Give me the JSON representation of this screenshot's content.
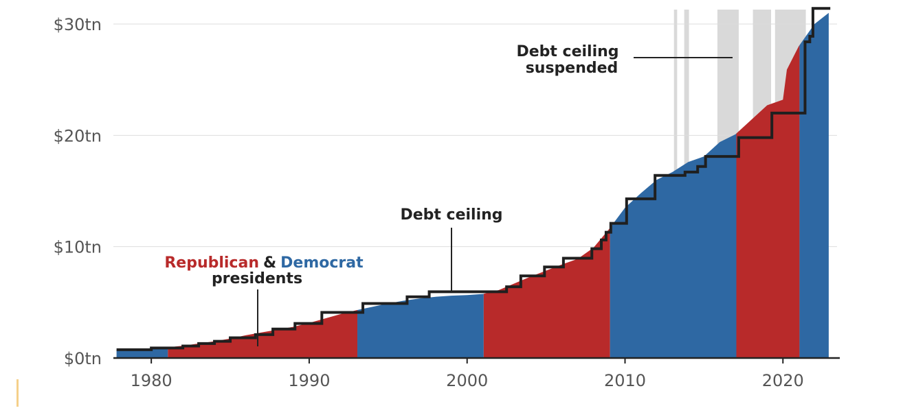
{
  "chart_data": {
    "type": "area",
    "title": "",
    "xlabel": "",
    "ylabel": "",
    "xlim": [
      1977.6,
      2023.6
    ],
    "ylim": [
      0,
      31
    ],
    "y_ticks": [
      {
        "value": 0,
        "label": "$0tn"
      },
      {
        "value": 10,
        "label": "$10tn"
      },
      {
        "value": 20,
        "label": "$20tn"
      },
      {
        "value": 30,
        "label": "$30tn"
      }
    ],
    "x_ticks": [
      {
        "value": 1980,
        "label": "1980"
      },
      {
        "value": 1990,
        "label": "1990"
      },
      {
        "value": 2000,
        "label": "2000"
      },
      {
        "value": 2010,
        "label": "2010"
      },
      {
        "value": 2020,
        "label": "2020"
      }
    ],
    "grid": "horizontal",
    "colors": {
      "republican": "#b82a2a",
      "democrat": "#2e68a3",
      "ceiling": "#1f1f1f",
      "suspended": "#d9d9d9",
      "grid": "#dddddd"
    },
    "debt": [
      [
        1977.8,
        0.7
      ],
      [
        1979,
        0.8
      ],
      [
        1980,
        0.88
      ],
      [
        1981,
        0.95
      ],
      [
        1982,
        1.1
      ],
      [
        1983,
        1.3
      ],
      [
        1984,
        1.5
      ],
      [
        1985,
        1.75
      ],
      [
        1986,
        2.05
      ],
      [
        1987,
        2.3
      ],
      [
        1988,
        2.55
      ],
      [
        1989,
        2.8
      ],
      [
        1990,
        3.15
      ],
      [
        1991,
        3.55
      ],
      [
        1992,
        3.95
      ],
      [
        1993,
        4.3
      ],
      [
        1994,
        4.6
      ],
      [
        1995,
        4.9
      ],
      [
        1996,
        5.15
      ],
      [
        1997,
        5.35
      ],
      [
        1998,
        5.5
      ],
      [
        1999,
        5.6
      ],
      [
        2000,
        5.65
      ],
      [
        2001,
        5.75
      ],
      [
        2002,
        6.1
      ],
      [
        2003,
        6.7
      ],
      [
        2004,
        7.3
      ],
      [
        2005,
        7.85
      ],
      [
        2006,
        8.4
      ],
      [
        2007,
        8.9
      ],
      [
        2008,
        9.9
      ],
      [
        2009,
        11.6
      ],
      [
        2010,
        13.5
      ],
      [
        2011,
        14.8
      ],
      [
        2012,
        16.0
      ],
      [
        2013,
        16.7
      ],
      [
        2014,
        17.6
      ],
      [
        2015,
        18.1
      ],
      [
        2016,
        19.4
      ],
      [
        2017,
        20.1
      ],
      [
        2018,
        21.4
      ],
      [
        2019,
        22.7
      ],
      [
        2020,
        23.2
      ],
      [
        2020.25,
        25.9
      ],
      [
        2021,
        28.0
      ],
      [
        2022,
        30.0
      ],
      [
        2022.9,
        31.0
      ]
    ],
    "presidencies": [
      {
        "party": "Democrat",
        "start": 1977.8,
        "end": 1981.05
      },
      {
        "party": "Republican",
        "start": 1981.05,
        "end": 1993.05
      },
      {
        "party": "Democrat",
        "start": 1993.05,
        "end": 2001.05
      },
      {
        "party": "Republican",
        "start": 2001.05,
        "end": 2009.05
      },
      {
        "party": "Democrat",
        "start": 2009.05,
        "end": 2017.05
      },
      {
        "party": "Republican",
        "start": 2017.05,
        "end": 2021.05
      },
      {
        "party": "Democrat",
        "start": 2021.05,
        "end": 2022.9
      }
    ],
    "debt_ceiling": [
      [
        1977.8,
        0.75
      ],
      [
        1980,
        0.9
      ],
      [
        1982,
        1.08
      ],
      [
        1983,
        1.3
      ],
      [
        1984,
        1.5
      ],
      [
        1985,
        1.82
      ],
      [
        1986.6,
        2.1
      ],
      [
        1987.7,
        2.6
      ],
      [
        1989.1,
        3.1
      ],
      [
        1990.8,
        4.1
      ],
      [
        1993.4,
        4.9
      ],
      [
        1996.2,
        5.5
      ],
      [
        1997.6,
        5.95
      ],
      [
        2002.5,
        6.4
      ],
      [
        2003.4,
        7.38
      ],
      [
        2004.9,
        8.18
      ],
      [
        2006.1,
        8.96
      ],
      [
        2007.9,
        9.82
      ],
      [
        2008.5,
        10.6
      ],
      [
        2008.8,
        11.3
      ],
      [
        2009.1,
        12.1
      ],
      [
        2010.1,
        14.3
      ],
      [
        2011.9,
        16.4
      ],
      [
        2013.8,
        16.7
      ],
      [
        2014.6,
        17.2
      ],
      [
        2015.1,
        18.1
      ],
      [
        2017.2,
        19.8
      ],
      [
        2019.3,
        22.0
      ],
      [
        2021.4,
        28.4
      ],
      [
        2021.7,
        28.9
      ],
      [
        2021.9,
        31.4
      ],
      [
        2023.0,
        31.4
      ]
    ],
    "suspended_periods": [
      [
        2013.1,
        2013.3
      ],
      [
        2013.75,
        2014.05
      ],
      [
        2015.85,
        2017.2
      ],
      [
        2018.1,
        2019.25
      ],
      [
        2019.5,
        2021.45
      ]
    ],
    "annotations": {
      "ceiling_suspended_line1": "Debt ceiling",
      "ceiling_suspended_line2": "suspended",
      "ceiling": "Debt ceiling",
      "legend_republican": "Republican",
      "legend_amp": "&",
      "legend_democrat": "Democrat",
      "legend_presidents": "presidents"
    }
  }
}
